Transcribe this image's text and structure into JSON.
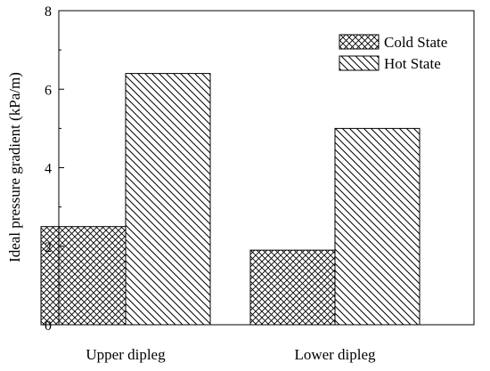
{
  "chart_data": {
    "type": "bar",
    "categories": [
      "Upper dipleg",
      "Lower dipleg"
    ],
    "series": [
      {
        "name": "Cold State",
        "values": [
          2.5,
          1.9
        ],
        "pattern": "crosshatch"
      },
      {
        "name": "Hot State",
        "values": [
          6.4,
          5.0
        ],
        "pattern": "diagonal"
      }
    ],
    "title": "",
    "xlabel": "",
    "ylabel": "Ideal pressure gradient (kPa/m)",
    "ylim": [
      0,
      8
    ],
    "yticks": [
      0,
      2,
      4,
      6,
      8
    ],
    "grid": false,
    "legend_position": "top-right"
  }
}
